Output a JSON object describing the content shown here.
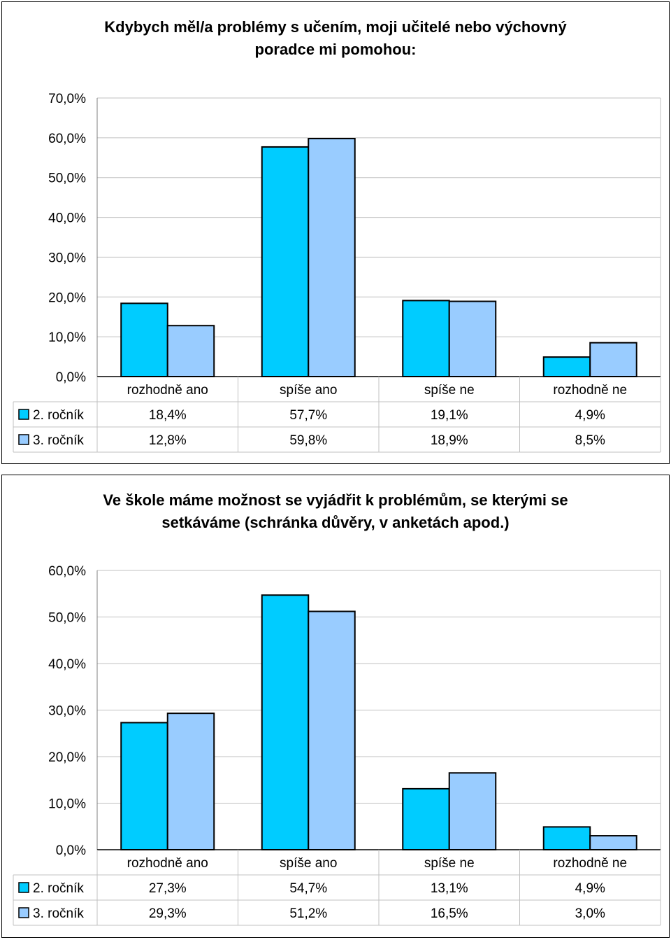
{
  "colors": {
    "series1": "#00CCFF",
    "series2": "#99CCFF",
    "grid": "#C0C0C0",
    "frame": "#000000"
  },
  "chart_data": [
    {
      "type": "bar",
      "title": [
        "Kdybych měl/a problémy s učením, moji učitelé nebo výchovný",
        "poradce mi pomohou:"
      ],
      "categories": [
        "rozhodně ano",
        "spíše ano",
        "spíše ne",
        "rozhodně ne"
      ],
      "ylim": [
        0,
        70
      ],
      "yticks": [
        0,
        10,
        20,
        30,
        40,
        50,
        60,
        70
      ],
      "ytick_labels": [
        "0,0%",
        "10,0%",
        "20,0%",
        "30,0%",
        "40,0%",
        "50,0%",
        "60,0%",
        "70,0%"
      ],
      "series": [
        {
          "name": "2. ročník",
          "values": [
            18.4,
            57.7,
            19.1,
            4.9
          ],
          "labels": [
            "18,4%",
            "57,7%",
            "19,1%",
            "4,9%"
          ]
        },
        {
          "name": "3. ročník",
          "values": [
            12.8,
            59.8,
            18.9,
            8.5
          ],
          "labels": [
            "12,8%",
            "59,8%",
            "18,9%",
            "8,5%"
          ]
        }
      ]
    },
    {
      "type": "bar",
      "title": [
        "Ve škole máme možnost se vyjádřit k problémům, se kterými se",
        "setkáváme (schránka důvěry, v anketách apod.)"
      ],
      "categories": [
        "rozhodně ano",
        "spíše ano",
        "spíše ne",
        "rozhodně ne"
      ],
      "ylim": [
        0,
        60
      ],
      "yticks": [
        0,
        10,
        20,
        30,
        40,
        50,
        60
      ],
      "ytick_labels": [
        "0,0%",
        "10,0%",
        "20,0%",
        "30,0%",
        "40,0%",
        "50,0%",
        "60,0%"
      ],
      "series": [
        {
          "name": "2. ročník",
          "values": [
            27.3,
            54.7,
            13.1,
            4.9
          ],
          "labels": [
            "27,3%",
            "54,7%",
            "13,1%",
            "4,9%"
          ]
        },
        {
          "name": "3. ročník",
          "values": [
            29.3,
            51.2,
            16.5,
            3.0
          ],
          "labels": [
            "29,3%",
            "51,2%",
            "16,5%",
            "3,0%"
          ]
        }
      ]
    }
  ]
}
